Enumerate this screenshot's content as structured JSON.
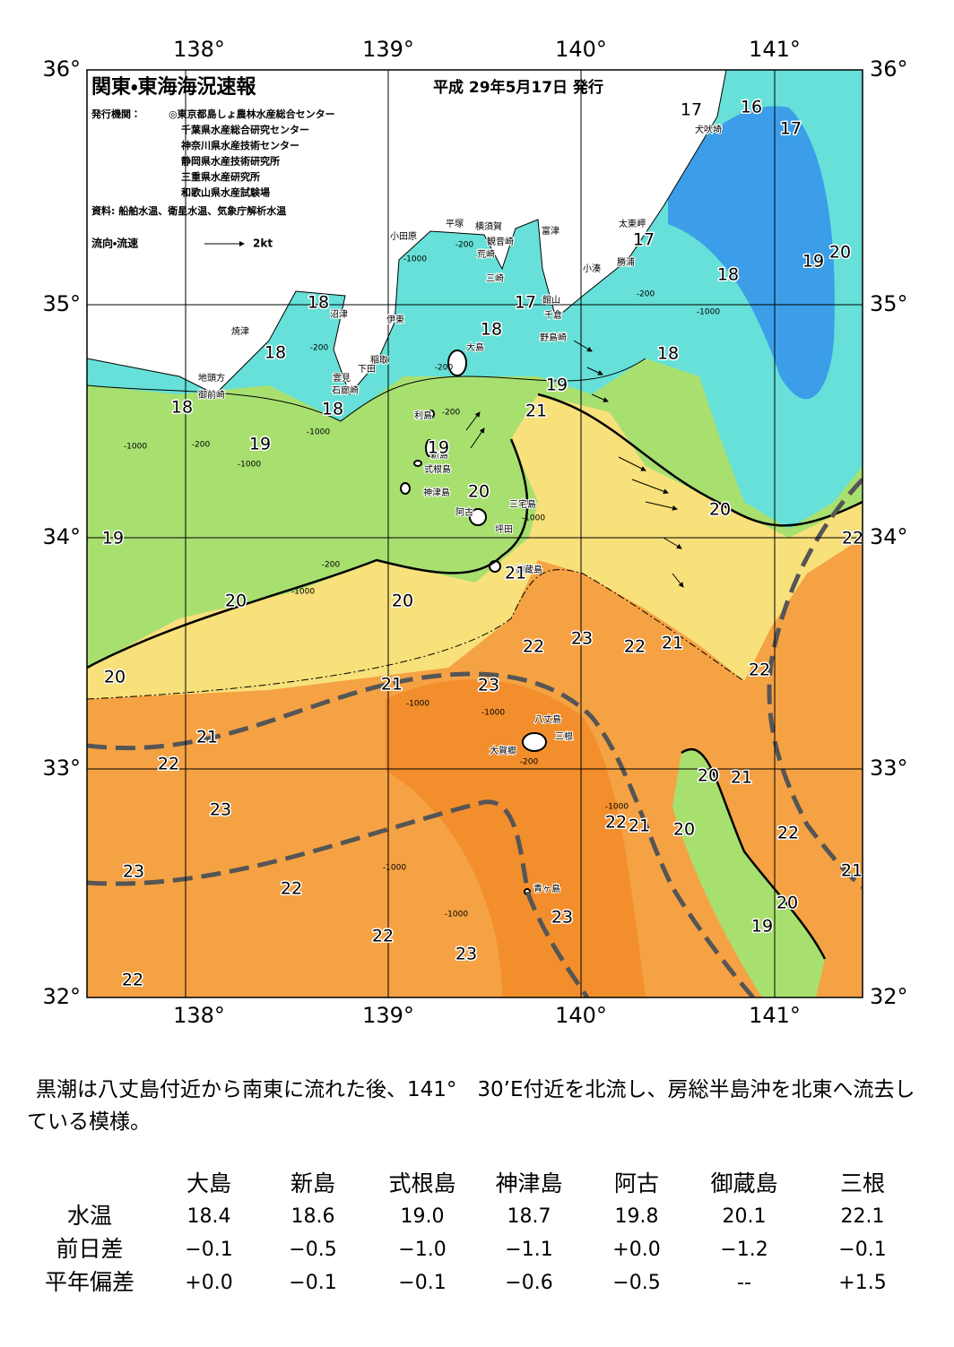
{
  "header": {
    "title": "関東・東海海況速報",
    "date": "平成 29年5月17日 発行"
  },
  "issuers": {
    "label": "発行機関：",
    "names": [
      "◎東京都島しょ農林水産総合センター",
      "千葉県水産総合研究センター",
      "神奈川県水産技術センター",
      "静岡県水産技術研究所",
      "三重県水産研究所",
      "和歌山県水産試験場"
    ]
  },
  "sources": "資料: 船舶水温、衛星水温、気象庁解析水温",
  "legend": {
    "label": "流向・流速",
    "scale": "2kt"
  },
  "map": {
    "longitude_labels": [
      "138°",
      "139°",
      "140°",
      "141°"
    ],
    "latitude_labels": [
      "36°",
      "35°",
      "34°",
      "33°",
      "32°"
    ],
    "place_names": [
      "犬吠埼",
      "太東岬",
      "勝浦",
      "小湊",
      "富津",
      "館山",
      "千倉",
      "野島崎",
      "横須賀",
      "観音崎",
      "荒崎",
      "三崎",
      "平塚",
      "小田原",
      "沼津",
      "伊東",
      "焼津",
      "稲取",
      "下田",
      "雲見",
      "石廊崎",
      "地頭方",
      "御前崎",
      "大島",
      "利島",
      "新島",
      "式根島",
      "神津島",
      "三宅島",
      "阿古",
      "坪田",
      "御蔵島",
      "八丈島",
      "三根",
      "大賀郷",
      "青ヶ島"
    ],
    "temperature_labels": [
      17,
      16,
      17,
      17,
      19,
      20,
      18,
      18,
      17,
      18,
      18,
      18,
      19,
      18,
      18,
      21,
      19,
      19,
      20,
      19,
      20,
      22,
      21,
      20,
      20,
      23,
      22,
      22,
      21,
      22,
      20,
      21,
      23,
      21,
      22,
      20,
      21,
      23,
      22,
      21,
      20,
      22,
      23,
      21,
      22,
      23,
      20,
      19,
      22,
      23,
      22
    ],
    "depth_labels": [
      -1000,
      -200,
      -200,
      -1000,
      -200,
      -200,
      -200,
      -1000,
      -1000,
      -200,
      -1000,
      -200,
      -1000,
      -1000,
      -1000,
      -1000,
      -200,
      -1000,
      -1000,
      -1000
    ]
  },
  "summary": "黒潮は八丈島付近から南東に流れた後、141°　30’E付近を北流し、房総半島沖を北東へ流去している模様。",
  "table": {
    "columns": [
      "大島",
      "新島",
      "式根島",
      "神津島",
      "阿古",
      "御蔵島",
      "三根"
    ],
    "rows": [
      {
        "label": "水温",
        "values": [
          "18.4",
          "18.6",
          "19.0",
          "18.7",
          "19.8",
          "20.1",
          "22.1"
        ]
      },
      {
        "label": "前日差",
        "values": [
          "−0.1",
          "−0.5",
          "−1.0",
          "−1.1",
          "+0.0",
          "−1.2",
          "−0.1"
        ]
      },
      {
        "label": "平年偏差",
        "values": [
          "+0.0",
          "−0.1",
          "−0.1",
          "−0.6",
          "−0.5",
          "--",
          "+1.5"
        ]
      }
    ]
  }
}
